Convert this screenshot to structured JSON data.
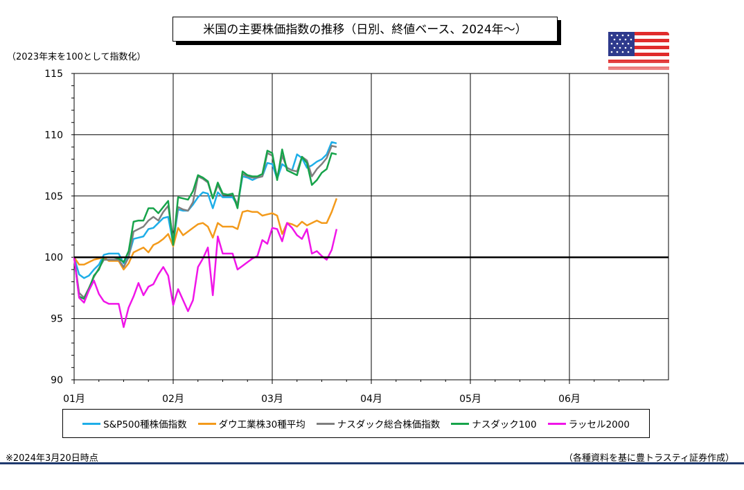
{
  "title": "米国の主要株価指数の推移（日別、終値ベース、2024年～）",
  "unit_note": "（2023年末を100として指数化）",
  "flag_icon": "us-flag-icon",
  "footnote_left": "※2024年3月20日時点",
  "footnote_right": "（各種資料を基に豊トラスティ証券作成）",
  "chart_data": {
    "type": "line",
    "ylim": [
      90,
      115
    ],
    "yticks": [
      90,
      95,
      100,
      105,
      110,
      115
    ],
    "xlim": [
      0,
      6
    ],
    "x_tick_labels": [
      "01月",
      "02月",
      "03月",
      "04月",
      "05月",
      "06月"
    ],
    "grid": true,
    "reference_line": 100,
    "legend_position": "bottom",
    "series": [
      {
        "name": "S&P500種株価指数",
        "color": "#1eaee8",
        "x": [
          0.0,
          0.05,
          0.1,
          0.15,
          0.2,
          0.25,
          0.3,
          0.35,
          0.4,
          0.45,
          0.5,
          0.55,
          0.6,
          0.65,
          0.7,
          0.75,
          0.8,
          0.85,
          0.9,
          0.95,
          1.0,
          1.05,
          1.1,
          1.15,
          1.2,
          1.25,
          1.3,
          1.35,
          1.4,
          1.45,
          1.5,
          1.55,
          1.6,
          1.65,
          1.7,
          1.75,
          1.8,
          1.85,
          1.9,
          1.95,
          2.0,
          2.05,
          2.1,
          2.15,
          2.2,
          2.25,
          2.3,
          2.35,
          2.4,
          2.45,
          2.5,
          2.55,
          2.6,
          2.65
        ],
        "values": [
          100.0,
          98.6,
          98.3,
          98.5,
          99.0,
          99.4,
          100.2,
          100.3,
          100.3,
          100.3,
          99.5,
          100.1,
          101.5,
          101.6,
          101.7,
          102.3,
          102.4,
          102.8,
          103.2,
          103.3,
          101.1,
          103.9,
          103.8,
          103.8,
          104.3,
          104.9,
          105.3,
          105.2,
          104.0,
          105.3,
          104.9,
          104.9,
          104.9,
          104.2,
          106.6,
          106.5,
          106.3,
          106.5,
          106.6,
          107.7,
          107.6,
          106.4,
          107.6,
          107.3,
          107.1,
          108.4,
          108.1,
          107.3,
          107.5,
          107.8,
          108.0,
          108.4,
          109.4,
          109.3
        ]
      },
      {
        "name": "ダウ工業株30種平均",
        "color": "#f39a1b",
        "x": [
          0.0,
          0.05,
          0.1,
          0.15,
          0.2,
          0.25,
          0.3,
          0.35,
          0.4,
          0.45,
          0.5,
          0.55,
          0.6,
          0.65,
          0.7,
          0.75,
          0.8,
          0.85,
          0.9,
          0.95,
          1.0,
          1.05,
          1.1,
          1.15,
          1.2,
          1.25,
          1.3,
          1.35,
          1.4,
          1.45,
          1.5,
          1.55,
          1.6,
          1.65,
          1.7,
          1.75,
          1.8,
          1.85,
          1.9,
          1.95,
          2.0,
          2.05,
          2.1,
          2.15,
          2.2,
          2.25,
          2.3,
          2.35,
          2.4,
          2.45,
          2.5,
          2.55,
          2.6,
          2.65
        ],
        "values": [
          100.0,
          99.4,
          99.4,
          99.6,
          99.8,
          99.9,
          100.0,
          99.7,
          99.7,
          99.7,
          99.0,
          99.5,
          100.4,
          100.6,
          100.8,
          100.4,
          101.0,
          101.2,
          101.5,
          101.9,
          100.9,
          102.4,
          101.8,
          102.1,
          102.4,
          102.7,
          102.8,
          102.5,
          101.6,
          102.8,
          102.5,
          102.5,
          102.5,
          102.3,
          103.7,
          103.8,
          103.7,
          103.7,
          103.4,
          103.5,
          103.6,
          103.4,
          101.9,
          102.8,
          102.7,
          102.5,
          102.9,
          102.6,
          102.8,
          103.0,
          102.8,
          102.8,
          103.7,
          104.8
        ]
      },
      {
        "name": "ナスダック総合株価指数",
        "color": "#7f7f7f",
        "x": [
          0.0,
          0.05,
          0.1,
          0.15,
          0.2,
          0.25,
          0.3,
          0.35,
          0.4,
          0.45,
          0.5,
          0.55,
          0.6,
          0.65,
          0.7,
          0.75,
          0.8,
          0.85,
          0.9,
          0.95,
          1.0,
          1.05,
          1.1,
          1.15,
          1.2,
          1.25,
          1.3,
          1.35,
          1.4,
          1.45,
          1.5,
          1.55,
          1.6,
          1.65,
          1.7,
          1.75,
          1.8,
          1.85,
          1.9,
          1.95,
          2.0,
          2.05,
          2.1,
          2.15,
          2.2,
          2.25,
          2.3,
          2.35,
          2.4,
          2.45,
          2.5,
          2.55,
          2.6,
          2.65
        ],
        "values": [
          100.0,
          97.1,
          96.7,
          97.5,
          98.4,
          99.1,
          99.8,
          99.8,
          99.8,
          99.8,
          99.2,
          100.0,
          102.1,
          102.3,
          102.5,
          103.0,
          103.3,
          103.0,
          103.7,
          104.2,
          101.4,
          104.1,
          103.9,
          103.8,
          104.5,
          106.6,
          106.4,
          106.1,
          104.8,
          105.9,
          105.1,
          105.1,
          105.1,
          104.3,
          106.8,
          106.6,
          106.5,
          106.5,
          106.6,
          108.5,
          108.3,
          106.5,
          108.3,
          107.3,
          107.1,
          107.0,
          108.2,
          107.9,
          106.6,
          107.2,
          107.6,
          108.1,
          109.1,
          109.0
        ]
      },
      {
        "name": "ナスダック100",
        "color": "#16a34a",
        "x": [
          0.0,
          0.05,
          0.1,
          0.15,
          0.2,
          0.25,
          0.3,
          0.35,
          0.4,
          0.45,
          0.5,
          0.55,
          0.6,
          0.65,
          0.7,
          0.75,
          0.8,
          0.85,
          0.9,
          0.95,
          1.0,
          1.05,
          1.1,
          1.15,
          1.2,
          1.25,
          1.3,
          1.35,
          1.4,
          1.45,
          1.5,
          1.55,
          1.6,
          1.65,
          1.7,
          1.75,
          1.8,
          1.85,
          1.9,
          1.95,
          2.0,
          2.05,
          2.1,
          2.15,
          2.2,
          2.25,
          2.3,
          2.35,
          2.4,
          2.45,
          2.5,
          2.55,
          2.6,
          2.65
        ],
        "values": [
          100.0,
          96.8,
          96.6,
          97.4,
          98.5,
          99.0,
          100.0,
          100.0,
          100.0,
          99.9,
          99.6,
          100.5,
          102.9,
          103.0,
          103.0,
          104.0,
          104.0,
          103.6,
          104.1,
          104.6,
          101.0,
          104.9,
          104.8,
          104.7,
          105.4,
          106.7,
          106.5,
          106.2,
          104.8,
          106.1,
          105.2,
          105.1,
          105.2,
          104.0,
          107.0,
          106.7,
          106.6,
          106.6,
          106.8,
          108.7,
          108.5,
          106.3,
          108.8,
          107.1,
          106.9,
          106.7,
          108.2,
          107.7,
          105.9,
          106.3,
          106.9,
          107.2,
          108.5,
          108.4
        ]
      },
      {
        "name": "ラッセル2000",
        "color": "#f015e8",
        "x": [
          0.0,
          0.05,
          0.1,
          0.15,
          0.2,
          0.25,
          0.3,
          0.35,
          0.4,
          0.45,
          0.5,
          0.55,
          0.6,
          0.65,
          0.7,
          0.75,
          0.8,
          0.85,
          0.9,
          0.95,
          1.0,
          1.05,
          1.1,
          1.15,
          1.2,
          1.25,
          1.3,
          1.35,
          1.4,
          1.45,
          1.5,
          1.55,
          1.6,
          1.65,
          1.7,
          1.75,
          1.8,
          1.85,
          1.9,
          1.95,
          2.0,
          2.05,
          2.1,
          2.15,
          2.2,
          2.25,
          2.3,
          2.35,
          2.4,
          2.45,
          2.5,
          2.55,
          2.6,
          2.65
        ],
        "values": [
          100.0,
          96.7,
          96.3,
          97.3,
          98.1,
          97.0,
          96.4,
          96.2,
          96.2,
          96.2,
          94.3,
          95.9,
          96.8,
          97.9,
          96.9,
          97.6,
          97.8,
          98.6,
          99.2,
          98.5,
          96.1,
          97.4,
          96.5,
          95.6,
          96.5,
          99.2,
          99.9,
          100.8,
          96.9,
          101.7,
          100.3,
          100.3,
          100.3,
          99.0,
          99.3,
          99.6,
          99.9,
          100.1,
          101.4,
          101.1,
          102.4,
          102.3,
          101.3,
          102.8,
          102.4,
          101.8,
          101.5,
          102.3,
          100.3,
          100.5,
          100.1,
          99.8,
          100.6,
          102.3
        ]
      }
    ]
  }
}
